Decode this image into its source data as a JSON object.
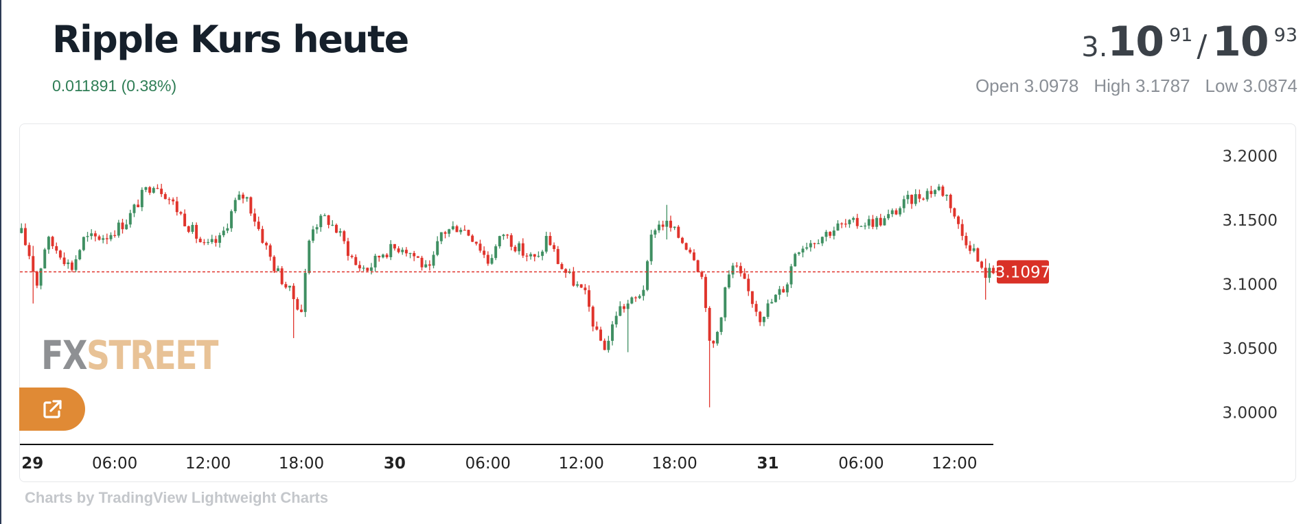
{
  "header": {
    "title": "Ripple Kurs heute",
    "change": "0.011891 (0.38%)"
  },
  "price": {
    "prefix": "3.",
    "bid_big": "10",
    "bid_small": "91",
    "separator": "/",
    "ask_big": "10",
    "ask_small": "93"
  },
  "ohl": {
    "open": "Open 3.0978",
    "high": "High 3.1787",
    "low": "Low 3.0874"
  },
  "watermark": {
    "fx": "FX",
    "street": "STREET"
  },
  "share_button": {
    "icon": "external-link-icon"
  },
  "credit": "Charts by TradingView Lightweight Charts",
  "colors": {
    "up": "#3f8f62",
    "down": "#e0342c",
    "last_price_line": "#e0342c",
    "last_price_badge": "#d93127",
    "accent": "#e08a35"
  },
  "chart_data": {
    "type": "candlestick",
    "ylim": [
      2.975,
      3.225
    ],
    "y_ticks": [
      "3.2000",
      "3.1500",
      "3.1000",
      "3.0500",
      "3.0000"
    ],
    "y_tick_values": [
      3.2,
      3.15,
      3.1,
      3.05,
      3.0
    ],
    "x_ticks": [
      {
        "label": "29",
        "bold": true,
        "hour": 0
      },
      {
        "label": "06:00",
        "bold": false,
        "hour": 6
      },
      {
        "label": "12:00",
        "bold": false,
        "hour": 12
      },
      {
        "label": "18:00",
        "bold": false,
        "hour": 18
      },
      {
        "label": "30",
        "bold": true,
        "hour": 24
      },
      {
        "label": "06:00",
        "bold": false,
        "hour": 30
      },
      {
        "label": "12:00",
        "bold": false,
        "hour": 36
      },
      {
        "label": "18:00",
        "bold": false,
        "hour": 42
      },
      {
        "label": "31",
        "bold": true,
        "hour": 48
      },
      {
        "label": "06:00",
        "bold": false,
        "hour": 54
      },
      {
        "label": "12:00",
        "bold": false,
        "hour": 60
      }
    ],
    "last_price": 3.1097,
    "last_price_label": "3.1097",
    "hours_span": [
      -0.1,
      62.5
    ],
    "interval_hours": 0.25,
    "path": [
      [
        0,
        3.14
      ],
      [
        0.6,
        3.12
      ],
      [
        1.0,
        3.1
      ],
      [
        1.6,
        3.135
      ],
      [
        2.5,
        3.125
      ],
      [
        3.2,
        3.112
      ],
      [
        4.0,
        3.135
      ],
      [
        5.5,
        3.138
      ],
      [
        6.8,
        3.15
      ],
      [
        7.8,
        3.17
      ],
      [
        8.5,
        3.18
      ],
      [
        9.2,
        3.172
      ],
      [
        10.5,
        3.15
      ],
      [
        11.8,
        3.128
      ],
      [
        12.8,
        3.135
      ],
      [
        13.8,
        3.165
      ],
      [
        14.4,
        3.17
      ],
      [
        15.2,
        3.145
      ],
      [
        16.2,
        3.115
      ],
      [
        17.2,
        3.095
      ],
      [
        18.0,
        3.08
      ],
      [
        18.6,
        3.145
      ],
      [
        19.6,
        3.152
      ],
      [
        20.4,
        3.14
      ],
      [
        21.5,
        3.115
      ],
      [
        22.3,
        3.112
      ],
      [
        23.2,
        3.125
      ],
      [
        24.5,
        3.13
      ],
      [
        25.5,
        3.12
      ],
      [
        26.2,
        3.108
      ],
      [
        27.0,
        3.14
      ],
      [
        28.2,
        3.146
      ],
      [
        29.2,
        3.135
      ],
      [
        30.0,
        3.118
      ],
      [
        31.0,
        3.14
      ],
      [
        32.2,
        3.125
      ],
      [
        33.2,
        3.118
      ],
      [
        33.8,
        3.138
      ],
      [
        34.6,
        3.115
      ],
      [
        35.5,
        3.102
      ],
      [
        36.3,
        3.09
      ],
      [
        37.0,
        3.06
      ],
      [
        37.6,
        3.05
      ],
      [
        38.3,
        3.08
      ],
      [
        39.5,
        3.088
      ],
      [
        40.1,
        3.1
      ],
      [
        40.6,
        3.145
      ],
      [
        41.4,
        3.148
      ],
      [
        42.2,
        3.138
      ],
      [
        43.2,
        3.125
      ],
      [
        43.9,
        3.1
      ],
      [
        44.3,
        3.045
      ],
      [
        44.8,
        3.065
      ],
      [
        45.3,
        3.1
      ],
      [
        45.8,
        3.115
      ],
      [
        46.5,
        3.1
      ],
      [
        47.5,
        3.075
      ],
      [
        48.5,
        3.09
      ],
      [
        49.2,
        3.1
      ],
      [
        49.8,
        3.128
      ],
      [
        51.0,
        3.135
      ],
      [
        52.5,
        3.145
      ],
      [
        54.0,
        3.148
      ],
      [
        55.5,
        3.15
      ],
      [
        57.0,
        3.165
      ],
      [
        58.2,
        3.172
      ],
      [
        59.0,
        3.175
      ],
      [
        59.6,
        3.168
      ],
      [
        60.4,
        3.14
      ],
      [
        61.2,
        3.128
      ],
      [
        61.8,
        3.108
      ],
      [
        62.5,
        3.11
      ]
    ],
    "spikes": [
      {
        "hour": 44.2,
        "low": 3.004,
        "high": 3.06
      },
      {
        "hour": 41.4,
        "high": 3.162,
        "low": 3.135
      },
      {
        "hour": 39.0,
        "low": 3.047,
        "high": 3.085
      },
      {
        "hour": 17.5,
        "low": 3.058,
        "high": 3.095
      },
      {
        "hour": 0.8,
        "low": 3.085,
        "high": 3.13
      },
      {
        "hour": 61.9,
        "low": 3.088,
        "high": 3.12
      }
    ]
  }
}
